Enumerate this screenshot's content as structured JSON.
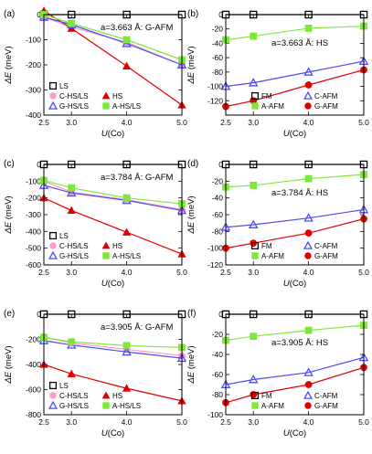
{
  "panel_labels": [
    "(a)",
    "(b)",
    "(c)",
    "(d)",
    "(e)",
    "(f)"
  ],
  "x_axis": {
    "label_symbol": "U",
    "label_unit": "(Co)",
    "ticks": [
      "2.5",
      "3.0",
      "4.0",
      "5.0"
    ]
  },
  "y_axis": {
    "label_symbol": "ΔE",
    "label_unit": "(meV)"
  },
  "colors": {
    "black": "#000000",
    "pink": "#ff9acd",
    "red": "#e00000",
    "blue": "#4c4cf0",
    "green": "#7ee83a"
  },
  "chart_data": [
    {
      "panel": "(a)",
      "type": "line",
      "annotation": "a=3.663 Å: G-AFM",
      "x": [
        2.5,
        3.0,
        4.0,
        5.0
      ],
      "xlim": [
        2.5,
        5.0
      ],
      "ylim": [
        -400,
        0
      ],
      "yticks": [
        "0",
        "-100",
        "-200",
        "-300",
        "-400"
      ],
      "yticks_values": [
        0,
        -100,
        -200,
        -300,
        -400
      ],
      "legend_cols": 2,
      "series": [
        {
          "name": "LS",
          "marker": "square-open",
          "color": "#000000",
          "values": [
            0,
            0,
            0,
            0
          ]
        },
        {
          "name": "C-HS/LS",
          "marker": "circle",
          "color": "#ff9acd",
          "values": [
            -10,
            -50,
            -110,
            -200
          ]
        },
        {
          "name": "HS",
          "marker": "triangle",
          "color": "#e00000",
          "values": [
            15,
            -55,
            -205,
            -360
          ]
        },
        {
          "name": "G-HS/LS",
          "marker": "triangle-open",
          "color": "#4c4cf0",
          "values": [
            -10,
            -40,
            -115,
            -200
          ]
        },
        {
          "name": "A-HS/LS",
          "marker": "square",
          "color": "#7ee83a",
          "values": [
            0,
            -35,
            -100,
            -180
          ]
        }
      ]
    },
    {
      "panel": "(b)",
      "type": "line",
      "annotation": "a=3.663 Å: HS",
      "x": [
        2.5,
        3.0,
        4.0,
        5.0
      ],
      "xlim": [
        2.5,
        5.0
      ],
      "ylim": [
        -140,
        0
      ],
      "yticks": [
        "0",
        "-20",
        "-40",
        "-60",
        "-80",
        "-100",
        "-120"
      ],
      "yticks_values": [
        0,
        -20,
        -40,
        -60,
        -80,
        -100,
        -120
      ],
      "legend_cols": 2,
      "series": [
        {
          "name": "FM",
          "marker": "square-open",
          "color": "#000000",
          "values": [
            0,
            0,
            0,
            0
          ]
        },
        {
          "name": "C-AFM",
          "marker": "triangle-open",
          "color": "#4c4cf0",
          "values": [
            -100,
            -95,
            -80,
            -65
          ]
        },
        {
          "name": "A-AFM",
          "marker": "square",
          "color": "#7ee83a",
          "values": [
            -35,
            -30,
            -19,
            -16
          ]
        },
        {
          "name": "G-AFM",
          "marker": "circle",
          "color": "#e00000",
          "values": [
            -128,
            -120,
            -98,
            -77
          ]
        }
      ]
    },
    {
      "panel": "(c)",
      "type": "line",
      "annotation": "a=3.784 Å: G-AFM",
      "x": [
        2.5,
        3.0,
        4.0,
        5.0
      ],
      "xlim": [
        2.5,
        5.0
      ],
      "ylim": [
        -600,
        0
      ],
      "yticks": [
        "0",
        "-100",
        "-200",
        "-300",
        "-400",
        "-500",
        "-600"
      ],
      "yticks_values": [
        0,
        -100,
        -200,
        -300,
        -400,
        -500,
        -600
      ],
      "legend_cols": 2,
      "series": [
        {
          "name": "LS",
          "marker": "square-open",
          "color": "#000000",
          "values": [
            0,
            0,
            0,
            0
          ]
        },
        {
          "name": "C-HS/LS",
          "marker": "circle",
          "color": "#ff9acd",
          "values": [
            -100,
            -165,
            -210,
            -270
          ]
        },
        {
          "name": "HS",
          "marker": "triangle",
          "color": "#e00000",
          "values": [
            -200,
            -275,
            -405,
            -535
          ]
        },
        {
          "name": "G-HS/LS",
          "marker": "triangle-open",
          "color": "#4c4cf0",
          "values": [
            -125,
            -170,
            -215,
            -275
          ]
        },
        {
          "name": "A-HS/LS",
          "marker": "square",
          "color": "#7ee83a",
          "values": [
            -95,
            -140,
            -200,
            -235
          ]
        }
      ]
    },
    {
      "panel": "(d)",
      "type": "line",
      "annotation": "a=3.784 Å: HS",
      "x": [
        2.5,
        3.0,
        4.0,
        5.0
      ],
      "xlim": [
        2.5,
        5.0
      ],
      "ylim": [
        -120,
        0
      ],
      "yticks": [
        "0",
        "-20",
        "-40",
        "-60",
        "-80",
        "-100",
        "-120"
      ],
      "yticks_values": [
        0,
        -20,
        -40,
        -60,
        -80,
        -100,
        -120
      ],
      "legend_cols": 2,
      "series": [
        {
          "name": "FM",
          "marker": "square-open",
          "color": "#000000",
          "values": [
            0,
            0,
            0,
            0
          ]
        },
        {
          "name": "C-AFM",
          "marker": "triangle-open",
          "color": "#4c4cf0",
          "values": [
            -75,
            -72,
            -64,
            -54
          ]
        },
        {
          "name": "A-AFM",
          "marker": "square",
          "color": "#7ee83a",
          "values": [
            -27,
            -25,
            -17,
            -12
          ]
        },
        {
          "name": "G-AFM",
          "marker": "circle",
          "color": "#e00000",
          "values": [
            -100,
            -94,
            -82,
            -65
          ]
        }
      ]
    },
    {
      "panel": "(e)",
      "type": "line",
      "annotation": "a=3.905 Å: G-AFM",
      "x": [
        2.5,
        3.0,
        4.0,
        5.0
      ],
      "xlim": [
        2.5,
        5.0
      ],
      "ylim": [
        -800,
        0
      ],
      "yticks": [
        "0",
        "-200",
        "-400",
        "-600",
        "-800"
      ],
      "yticks_values": [
        0,
        -200,
        -400,
        -600,
        -800
      ],
      "legend_cols": 2,
      "series": [
        {
          "name": "LS",
          "marker": "square-open",
          "color": "#000000",
          "values": [
            0,
            0,
            0,
            0
          ]
        },
        {
          "name": "C-HS/LS",
          "marker": "circle",
          "color": "#ff9acd",
          "values": [
            -180,
            -230,
            -280,
            -330
          ]
        },
        {
          "name": "HS",
          "marker": "triangle",
          "color": "#e00000",
          "values": [
            -400,
            -475,
            -590,
            -690
          ]
        },
        {
          "name": "G-HS/LS",
          "marker": "triangle-open",
          "color": "#4c4cf0",
          "values": [
            -210,
            -245,
            -300,
            -350
          ]
        },
        {
          "name": "A-HS/LS",
          "marker": "square",
          "color": "#7ee83a",
          "values": [
            -185,
            -220,
            -250,
            -265
          ]
        }
      ]
    },
    {
      "panel": "(f)",
      "type": "line",
      "annotation": "a=3.905 Å: HS",
      "x": [
        2.5,
        3.0,
        4.0,
        5.0
      ],
      "xlim": [
        2.5,
        5.0
      ],
      "ylim": [
        -100,
        0
      ],
      "yticks": [
        "0",
        "-20",
        "-40",
        "-60",
        "-80",
        "-100"
      ],
      "yticks_values": [
        0,
        -20,
        -40,
        -60,
        -80,
        -100
      ],
      "legend_cols": 2,
      "series": [
        {
          "name": "FM",
          "marker": "square-open",
          "color": "#000000",
          "values": [
            0,
            0,
            0,
            0
          ]
        },
        {
          "name": "C-AFM",
          "marker": "triangle-open",
          "color": "#4c4cf0",
          "values": [
            -70,
            -65,
            -58,
            -43
          ]
        },
        {
          "name": "A-AFM",
          "marker": "square",
          "color": "#7ee83a",
          "values": [
            -26,
            -22,
            -16,
            -11
          ]
        },
        {
          "name": "G-AFM",
          "marker": "circle",
          "color": "#e00000",
          "values": [
            -88,
            -80,
            -70,
            -53
          ]
        }
      ]
    }
  ]
}
